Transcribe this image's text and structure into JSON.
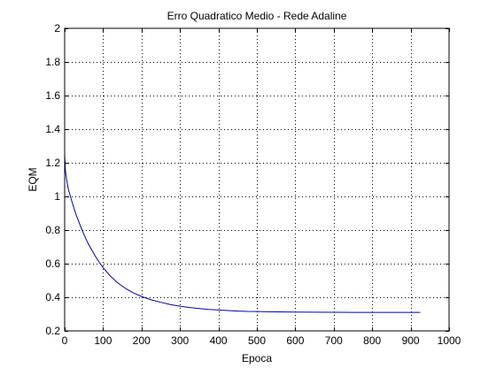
{
  "chart_data": {
    "type": "line",
    "title": "Erro Quadratico Medio - Rede Adaline",
    "xlabel": "Epoca",
    "ylabel": "EQM",
    "xlim": [
      0,
      1000
    ],
    "ylim": [
      0.2,
      2
    ],
    "xticks": [
      0,
      100,
      200,
      300,
      400,
      500,
      600,
      700,
      800,
      900,
      1000
    ],
    "yticks": [
      0.2,
      0.4,
      0.6,
      0.8,
      1,
      1.2,
      1.4,
      1.6,
      1.8,
      2
    ],
    "xtick_labels": [
      "0",
      "100",
      "200",
      "300",
      "400",
      "500",
      "600",
      "700",
      "800",
      "900",
      "1000"
    ],
    "ytick_labels": [
      "0.2",
      "0.4",
      "0.6",
      "0.8",
      "1",
      "1.2",
      "1.4",
      "1.6",
      "1.8",
      "2"
    ],
    "grid": true,
    "series": [
      {
        "color": "#0000aa",
        "x": [
          0,
          2,
          5,
          10,
          20,
          30,
          40,
          50,
          60,
          70,
          80,
          90,
          100,
          120,
          140,
          160,
          180,
          200,
          225,
          250,
          275,
          300,
          325,
          350,
          375,
          400,
          425,
          450,
          475,
          500,
          550,
          600,
          650,
          700,
          750,
          800,
          850,
          900,
          925
        ],
        "y": [
          1.25,
          1.15,
          1.1,
          1.04,
          0.96,
          0.89,
          0.83,
          0.775,
          0.725,
          0.683,
          0.643,
          0.608,
          0.577,
          0.523,
          0.482,
          0.45,
          0.425,
          0.405,
          0.385,
          0.37,
          0.357,
          0.347,
          0.339,
          0.333,
          0.328,
          0.324,
          0.321,
          0.318,
          0.316,
          0.315,
          0.313,
          0.312,
          0.311,
          0.3105,
          0.31,
          0.31,
          0.31,
          0.31,
          0.31
        ]
      }
    ]
  }
}
